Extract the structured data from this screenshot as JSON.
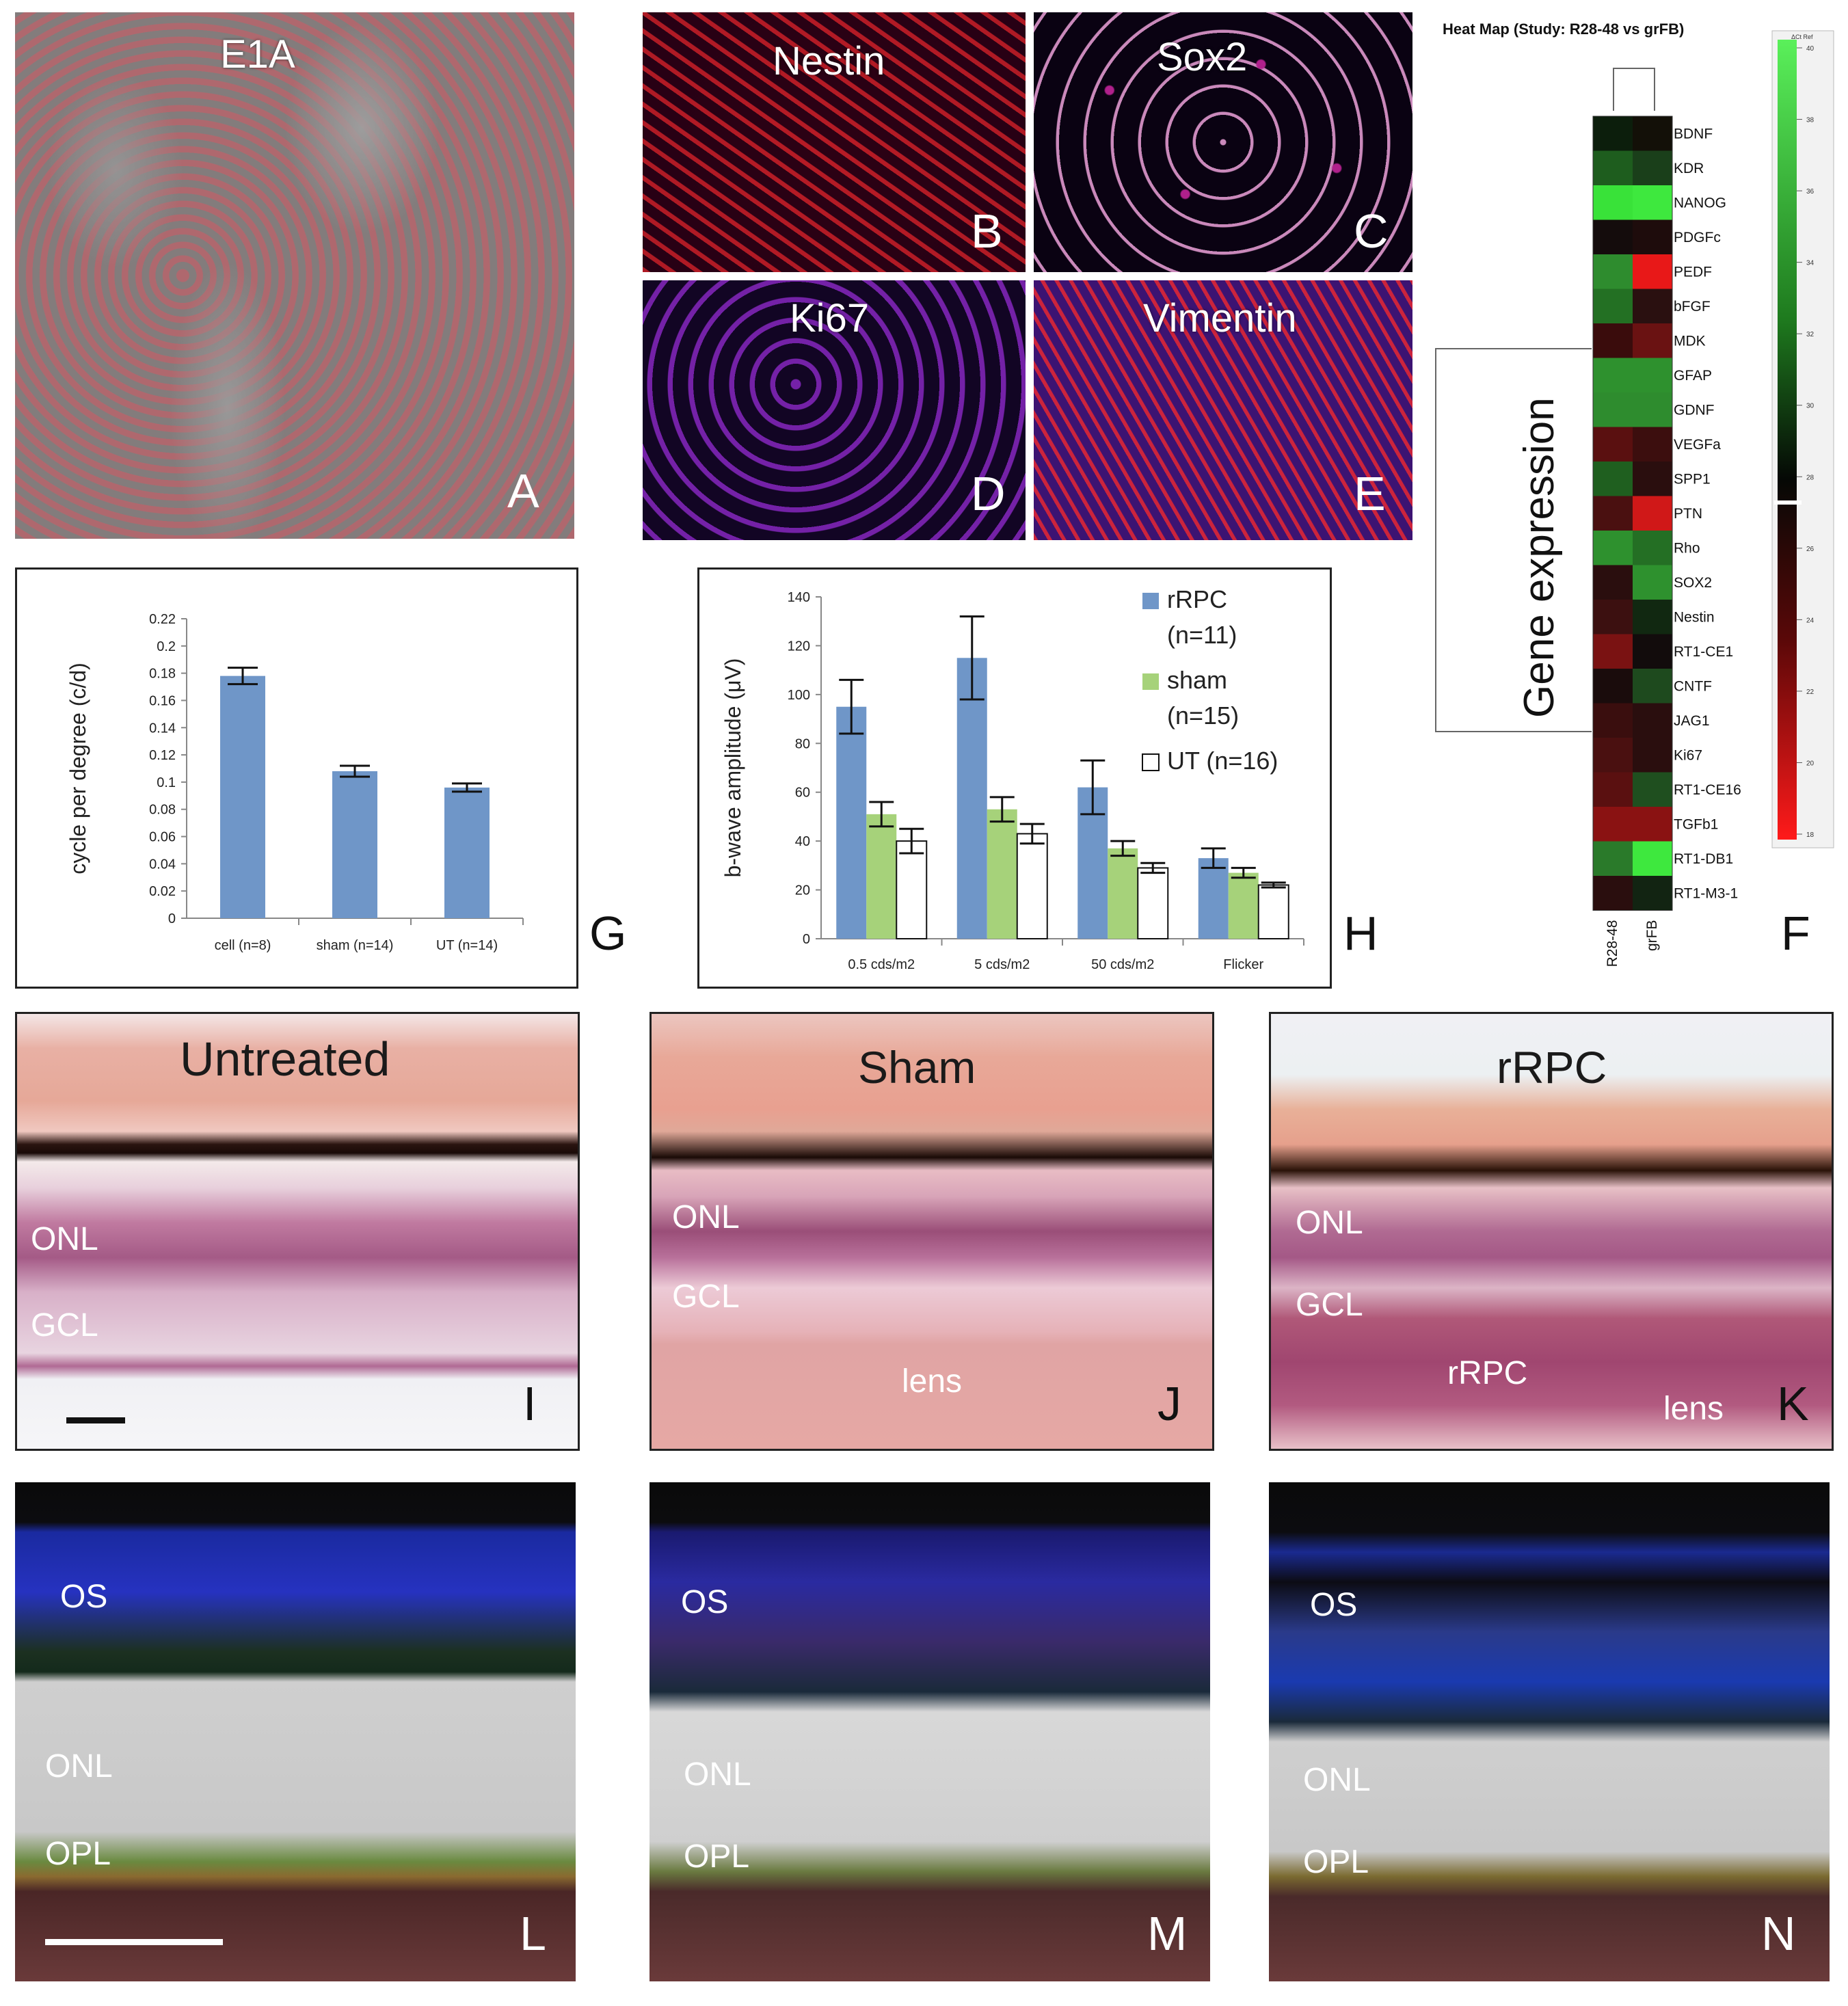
{
  "panels": {
    "A": {
      "letter": "A",
      "label": "E1A"
    },
    "B": {
      "letter": "B",
      "label": "Nestin"
    },
    "C": {
      "letter": "C",
      "label": "Sox2"
    },
    "D": {
      "letter": "D",
      "label": "Ki67"
    },
    "E": {
      "letter": "E",
      "label": "Vimentin"
    },
    "F": {
      "letter": "F"
    },
    "G": {
      "letter": "G"
    },
    "H": {
      "letter": "H"
    },
    "I": {
      "letter": "I",
      "title": "Untreated",
      "layers": [
        "ONL",
        "GCL"
      ]
    },
    "J": {
      "letter": "J",
      "title": "Sham",
      "layers": [
        "ONL",
        "GCL",
        "lens"
      ]
    },
    "K": {
      "letter": "K",
      "title": "rRPC",
      "layers": [
        "ONL",
        "GCL",
        "rRPC",
        "lens"
      ]
    },
    "L": {
      "letter": "L",
      "layers": [
        "OS",
        "ONL",
        "OPL"
      ]
    },
    "M": {
      "letter": "M",
      "layers": [
        "OS",
        "ONL",
        "OPL"
      ]
    },
    "N": {
      "letter": "N",
      "layers": [
        "OS",
        "ONL",
        "OPL"
      ]
    }
  },
  "heatmap": {
    "title": "Heat Map (Study: R28-48 vs grFB)",
    "side_label": "Gene expression",
    "columns": [
      "R28-48",
      "grFB"
    ],
    "genes": [
      "BDNF",
      "KDR",
      "NANOG",
      "PDGFc",
      "PEDF",
      "bFGF",
      "MDK",
      "GFAP",
      "GDNF",
      "VEGFa",
      "SPP1",
      "PTN",
      "Rho",
      "SOX2",
      "Nestin",
      "RT1-CE1",
      "CNTF",
      "JAG1",
      "Ki67",
      "RT1-CE16",
      "TGFb1",
      "RT1-DB1",
      "RT1-M3-1"
    ],
    "cell_colors": [
      [
        "#0c1e0c",
        "#131008"
      ],
      [
        "#1e5d1e",
        "#1a3f1a"
      ],
      [
        "#39e239",
        "#3ee83e"
      ],
      [
        "#140c0c",
        "#1e0c0c"
      ],
      [
        "#2e8c2e",
        "#e81818"
      ],
      [
        "#237023",
        "#2a1010"
      ],
      [
        "#3a0c0c",
        "#6a1212"
      ],
      [
        "#2e912e",
        "#2e912e"
      ],
      [
        "#2e8c2e",
        "#2e8c2e"
      ],
      [
        "#5a1010",
        "#3c0e0e"
      ],
      [
        "#1f5f1f",
        "#2a0e0e"
      ],
      [
        "#4a1010",
        "#d01818"
      ],
      [
        "#2e912e",
        "#246f24"
      ],
      [
        "#2a0e0e",
        "#2e912e"
      ],
      [
        "#3c1010",
        "#112811"
      ],
      [
        "#7a1212",
        "#120c0c"
      ],
      [
        "#1a0c0c",
        "#1e4a1e"
      ],
      [
        "#3a0e0e",
        "#2a0e0e"
      ],
      [
        "#4a1010",
        "#2a0e0e"
      ],
      [
        "#5a1010",
        "#1f4f1f"
      ],
      [
        "#8a1212",
        "#8a1212"
      ],
      [
        "#2a7a2a",
        "#3ee83e"
      ],
      [
        "#2a0e0e",
        "#122412"
      ]
    ],
    "scale_header": "ΔCt Ref",
    "scale_ticks": [
      "40",
      "38",
      "36",
      "34",
      "32",
      "30",
      "28",
      "26",
      "24",
      "22",
      "20",
      "18"
    ]
  },
  "chart_data": [
    {
      "type": "bar",
      "panel": "G",
      "categories": [
        "cell (n=8)",
        "sham (n=14)",
        "UT (n=14)"
      ],
      "values": [
        0.178,
        0.108,
        0.096
      ],
      "errors": [
        0.006,
        0.004,
        0.003
      ],
      "ylabel": "cycle per degree (c/d)",
      "ylim": [
        0,
        0.22
      ],
      "yticks": [
        "0",
        "0.02",
        "0.04",
        "0.06",
        "0.08",
        "0.1",
        "0.12",
        "0.14",
        "0.16",
        "0.18",
        "0.2",
        "0.22"
      ],
      "color": "#6f96c8"
    },
    {
      "type": "bar",
      "panel": "H",
      "categories": [
        "0.5 cds/m2",
        "5 cds/m2",
        "50 cds/m2",
        "Flicker"
      ],
      "series": [
        {
          "name": "rRPC (n=11)",
          "values": [
            95,
            115,
            62,
            33
          ],
          "errors": [
            11,
            17,
            11,
            4
          ],
          "color": "#6f96c8"
        },
        {
          "name": "sham (n=15)",
          "values": [
            51,
            53,
            37,
            27
          ],
          "errors": [
            5,
            5,
            3,
            2
          ],
          "color": "#a6d27a"
        },
        {
          "name": "UT (n=16)",
          "values": [
            40,
            43,
            29,
            22
          ],
          "errors": [
            5,
            4,
            2,
            1
          ],
          "color": "#ffffff"
        }
      ],
      "legend_lines": [
        [
          "rRPC",
          "(n=11)"
        ],
        [
          "sham",
          "(n=15)"
        ],
        [
          "UT (n=16)"
        ]
      ],
      "ylabel": "b-wave amplitude (μV)",
      "ylim": [
        0,
        140
      ],
      "yticks": [
        "0",
        "20",
        "40",
        "60",
        "80",
        "100",
        "120",
        "140"
      ]
    }
  ]
}
